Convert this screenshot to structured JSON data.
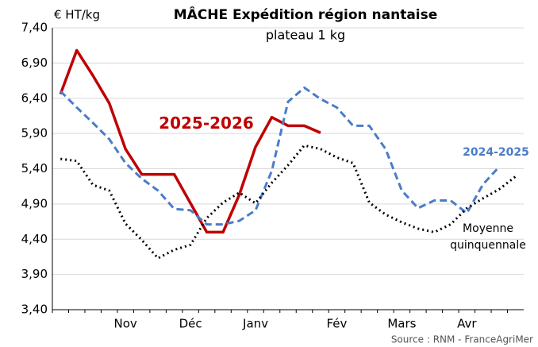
{
  "chart_data": {
    "type": "line",
    "title": "MÂCHE Expédition région nantaise",
    "subtitle": "plateau 1 kg",
    "y_label": "€ HT/kg",
    "source": "Source : RNM - FranceAgriMer",
    "categories": [
      null,
      null,
      null,
      null,
      "Nov",
      null,
      null,
      null,
      "Déc",
      null,
      null,
      null,
      "Janv",
      null,
      null,
      null,
      null,
      "Fév",
      null,
      null,
      null,
      "Mars",
      null,
      null,
      null,
      "Avr",
      null,
      null,
      null
    ],
    "series": [
      {
        "name": "2025-2026",
        "color": "#c00000",
        "dash": "solid",
        "values": [
          6.46,
          7.08,
          6.72,
          6.33,
          5.68,
          5.32,
          5.32,
          5.32,
          4.91,
          4.5,
          4.5,
          5.03,
          5.71,
          6.13,
          6.01,
          6.01,
          5.91,
          null,
          null,
          null,
          null,
          null,
          null,
          null,
          null,
          null,
          null,
          null,
          null
        ]
      },
      {
        "name": "2024-2025",
        "color": "#4a7cc9",
        "dash": "dashed",
        "values": [
          6.5,
          6.27,
          6.05,
          5.82,
          5.48,
          5.26,
          5.09,
          4.83,
          4.81,
          4.61,
          4.61,
          4.66,
          4.81,
          5.37,
          6.35,
          6.55,
          6.39,
          6.27,
          6.01,
          6.01,
          5.68,
          5.09,
          4.84,
          4.95,
          4.95,
          4.77,
          5.18,
          5.43,
          null
        ]
      },
      {
        "name": "Moyenne quinquennale",
        "color": "#000000",
        "dash": "dotted",
        "values": [
          5.54,
          5.51,
          5.17,
          5.09,
          4.62,
          4.39,
          4.13,
          4.25,
          4.32,
          4.7,
          4.92,
          5.06,
          4.91,
          5.2,
          5.45,
          5.73,
          5.68,
          5.56,
          5.48,
          4.92,
          4.75,
          4.64,
          4.55,
          4.5,
          4.61,
          4.84,
          4.98,
          5.11,
          5.29
        ]
      }
    ],
    "ylim": [
      3.4,
      7.4
    ],
    "yticks": [
      {
        "value": 3.4,
        "label": "3,40"
      },
      {
        "value": 3.9,
        "label": "3,90"
      },
      {
        "value": 4.4,
        "label": "4,40"
      },
      {
        "value": 4.9,
        "label": "4,90"
      },
      {
        "value": 5.4,
        "label": "5,40"
      },
      {
        "value": 5.9,
        "label": "5,90"
      },
      {
        "value": 6.4,
        "label": "6,40"
      },
      {
        "value": 6.9,
        "label": "6,90"
      },
      {
        "value": 7.4,
        "label": "7,40"
      }
    ],
    "grid": true
  }
}
